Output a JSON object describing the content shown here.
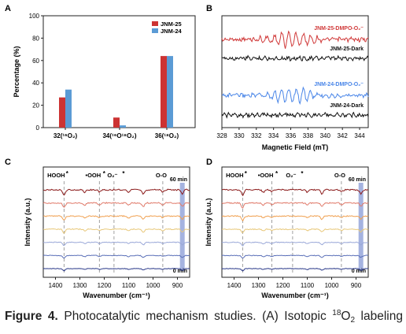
{
  "panels": {
    "a": {
      "letter": "A",
      "ylabel": "Percentage (%)",
      "legend": [
        "JNM-25",
        "JNM-24"
      ]
    },
    "b": {
      "letter": "B",
      "xlabel": "Magnetic Field (mT)"
    },
    "c": {
      "letter": "C",
      "ylabel": "Intensity (a.u.)",
      "xlabel": "Wavenumber (cm⁻¹)",
      "labels": {
        "hooh": "HOOH",
        "ooh": "•OOH",
        "o2": "O₂⁻",
        "oo": "O-O",
        "top": "60 min",
        "bottom": "0 min",
        "star": "*"
      }
    },
    "d": {
      "letter": "D",
      "ylabel": "Intensity (a.u.)",
      "xlabel": "Wavenumber (cm⁻¹)",
      "labels": {
        "hooh": "HOOH",
        "ooh": "•OOH",
        "o2": "O₂⁻",
        "oo": "O-O",
        "top": "60 min",
        "bottom": "0 min",
        "star": "*"
      }
    }
  },
  "chart_data": [
    {
      "type": "bar",
      "categories": [
        "32(¹⁶O₂)",
        "34(¹⁶O¹⁸O₂)",
        "36(¹⁸O₂)"
      ],
      "series": [
        {
          "name": "JNM-25",
          "values": [
            27,
            9,
            64
          ],
          "color": "#cc3333"
        },
        {
          "name": "JNM-24",
          "values": [
            34,
            2,
            64
          ],
          "color": "#5b9bd5"
        }
      ],
      "ylabel": "Percentage (%)",
      "ylim": [
        0,
        100
      ],
      "yticks": [
        0,
        20,
        40,
        60,
        80,
        100
      ]
    },
    {
      "type": "line",
      "xlabel": "Magnetic Field (mT)",
      "xlim": [
        328,
        345
      ],
      "xticks": [
        328,
        330,
        332,
        334,
        336,
        338,
        340,
        342,
        344
      ],
      "series": [
        {
          "name": "JNM-25-DMPO-O₂⁻",
          "color": "#d03a3a",
          "signal": true
        },
        {
          "name": "JNM-25-Dark",
          "color": "#111111",
          "signal": false
        },
        {
          "name": "JNM-24-DMPO-O₂⁻",
          "color": "#4a86e8",
          "signal": true
        },
        {
          "name": "JNM-24-Dark",
          "color": "#111111",
          "signal": false
        }
      ]
    },
    {
      "type": "line",
      "xlabel": "Wavenumber (cm⁻¹)",
      "ylabel": "Intensity (a.u.)",
      "xlim": [
        1450,
        850
      ],
      "xticks": [
        1400,
        1300,
        1200,
        1100,
        1000,
        900
      ],
      "markers": {
        "hooh": 1365,
        "ooh": 1220,
        "o2": 1160,
        "oo": 960,
        "band": 880
      },
      "series_colors": [
        "#8b1a1a",
        "#e07a6a",
        "#f0a050",
        "#e8c87a",
        "#9aa8d8",
        "#5a6fb8",
        "#2b3a8a"
      ]
    },
    {
      "type": "line",
      "xlabel": "Wavenumber (cm⁻¹)",
      "ylabel": "Intensity (a.u.)",
      "xlim": [
        1450,
        850
      ],
      "xticks": [
        1400,
        1300,
        1200,
        1100,
        1000,
        900
      ],
      "markers": {
        "hooh": 1365,
        "ooh": 1245,
        "o2": 1160,
        "oo": 960,
        "band": 880
      },
      "series_colors": [
        "#8b1a1a",
        "#e07a6a",
        "#f0a050",
        "#e8c87a",
        "#9aa8d8",
        "#5a6fb8",
        "#2b3a8a"
      ]
    }
  ],
  "caption": {
    "fig": "Figure 4.",
    "text1": " Photocatalytic mechanism studies. (A) Isotopic ",
    "sup": "18",
    "mid": "O",
    "sub": "2",
    "text2": " labeling"
  }
}
